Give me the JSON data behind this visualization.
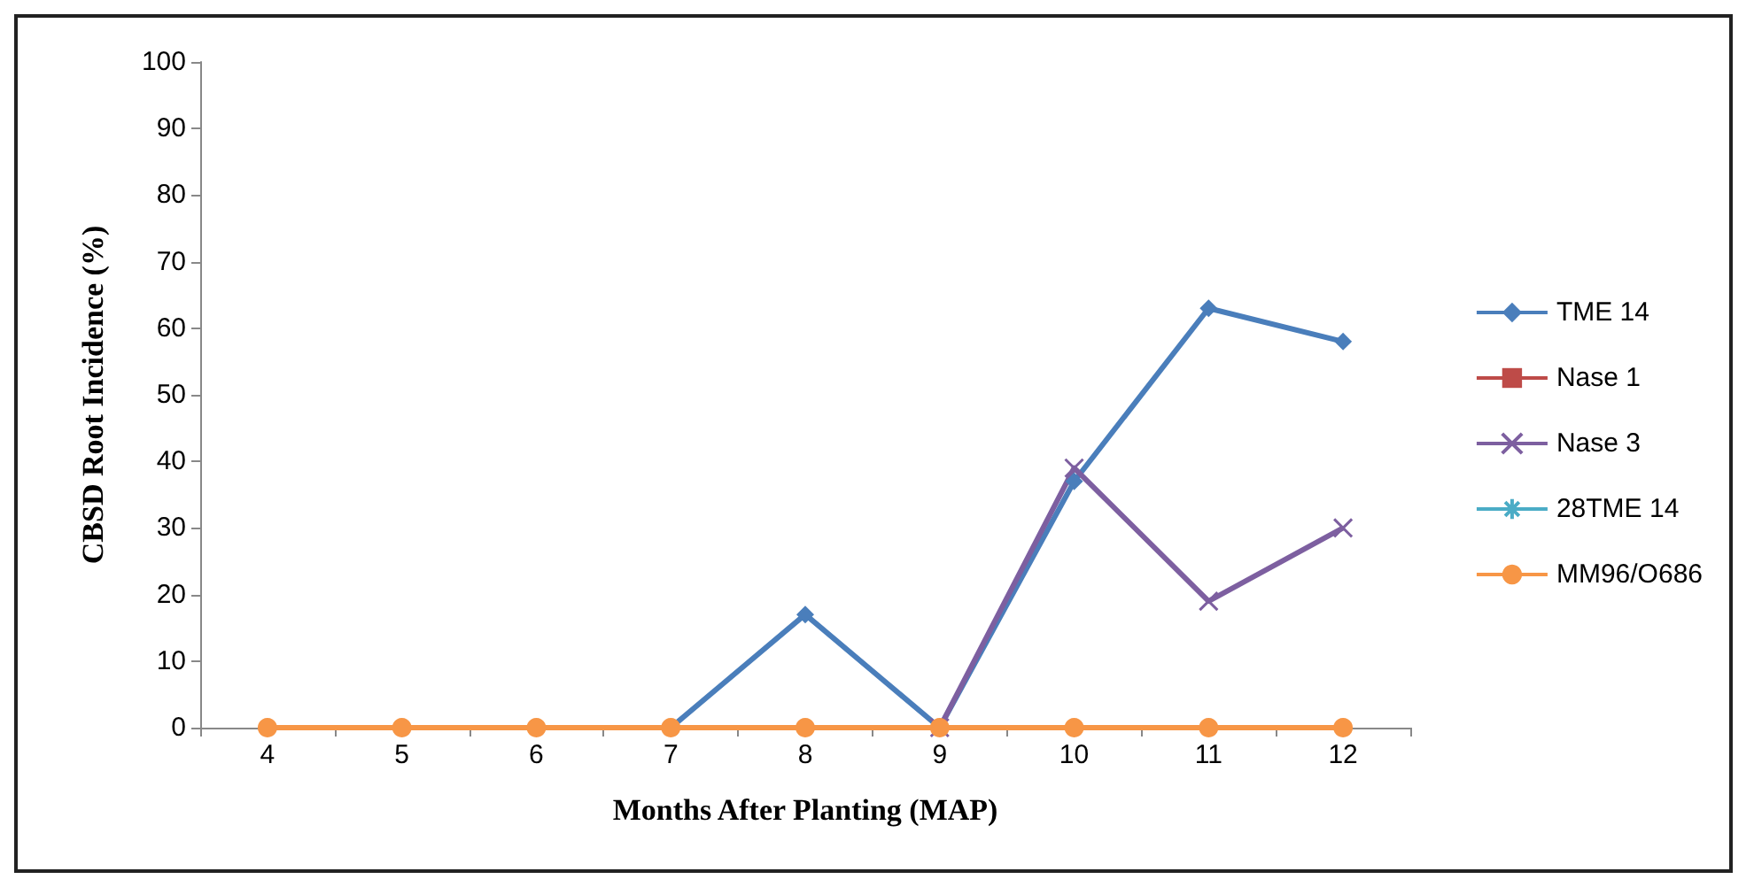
{
  "chart_data": {
    "type": "line",
    "xlabel": "Months After Planting (MAP)",
    "ylabel": "CBSD Root Incidence (%)",
    "categories": [
      "4",
      "5",
      "6",
      "7",
      "8",
      "9",
      "10",
      "11",
      "12"
    ],
    "series": [
      {
        "name": "TME 14",
        "color": "#4a7ebb",
        "marker": "diamond",
        "values": [
          null,
          null,
          null,
          0,
          17,
          0,
          37,
          63,
          58
        ]
      },
      {
        "name": "Nase 1",
        "color": "#be4b48",
        "marker": "square",
        "values": [
          null,
          null,
          null,
          null,
          null,
          null,
          null,
          null,
          null
        ]
      },
      {
        "name": "Nase 3",
        "color": "#7d5fa0",
        "marker": "cross",
        "values": [
          null,
          null,
          null,
          null,
          null,
          0,
          39,
          19,
          30
        ]
      },
      {
        "name": "28TME 14",
        "color": "#4bacc6",
        "marker": "star",
        "values": [
          null,
          null,
          null,
          null,
          null,
          null,
          null,
          null,
          null
        ]
      },
      {
        "name": "MM96/O686",
        "color": "#f79646",
        "marker": "circle",
        "values": [
          0,
          0,
          0,
          0,
          0,
          0,
          0,
          0,
          0
        ]
      }
    ],
    "ylim": [
      0,
      100
    ],
    "yticks": [
      0,
      10,
      20,
      30,
      40,
      50,
      60,
      70,
      80,
      90,
      100
    ],
    "grid": false,
    "legend": "right",
    "line_style": "solid"
  }
}
